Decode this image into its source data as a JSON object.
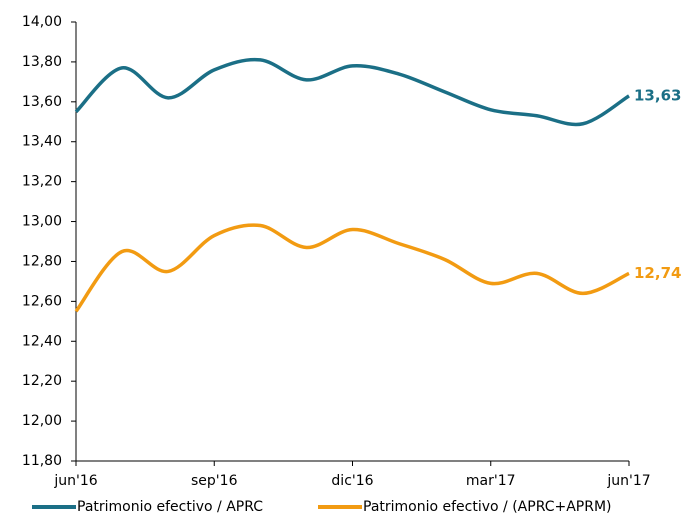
{
  "chart_data": {
    "type": "line",
    "categories": [
      "jun'16",
      null,
      null,
      "sep'16",
      null,
      null,
      "dic'16",
      null,
      null,
      "mar'17",
      null,
      null,
      "jun'17"
    ],
    "series": [
      {
        "name": "Patrimonio efectivo / APRC",
        "color": "#1b6f86",
        "values": [
          13.55,
          13.77,
          13.62,
          13.76,
          13.81,
          13.71,
          13.78,
          13.74,
          13.65,
          13.56,
          13.53,
          13.49,
          13.63
        ],
        "value_labels": [
          null,
          null,
          null,
          null,
          null,
          null,
          null,
          null,
          null,
          null,
          null,
          null,
          "13,63"
        ]
      },
      {
        "name": "Patrimonio efectivo / (APRC+APRM)",
        "color": "#f29b12",
        "values": [
          12.55,
          12.85,
          12.75,
          12.93,
          12.98,
          12.87,
          12.96,
          12.89,
          12.81,
          12.69,
          12.74,
          12.64,
          12.74
        ],
        "value_labels": [
          null,
          null,
          null,
          null,
          null,
          null,
          null,
          null,
          null,
          null,
          null,
          null,
          "12,74"
        ]
      }
    ],
    "ylim": [
      11.8,
      14.0
    ],
    "yticks": [
      {
        "value": 11.8,
        "label": "11,80"
      },
      {
        "value": 12.0,
        "label": "12,00"
      },
      {
        "value": 12.2,
        "label": "12,20"
      },
      {
        "value": 12.4,
        "label": "12,40"
      },
      {
        "value": 12.6,
        "label": "12,60"
      },
      {
        "value": 12.8,
        "label": "12,80"
      },
      {
        "value": 13.0,
        "label": "13,00"
      },
      {
        "value": 13.2,
        "label": "13,20"
      },
      {
        "value": 13.4,
        "label": "13,40"
      },
      {
        "value": 13.6,
        "label": "13,60"
      },
      {
        "value": 13.8,
        "label": "13,80"
      },
      {
        "value": 14.0,
        "label": "14,00"
      }
    ],
    "grid": false,
    "legend": "bottom"
  }
}
